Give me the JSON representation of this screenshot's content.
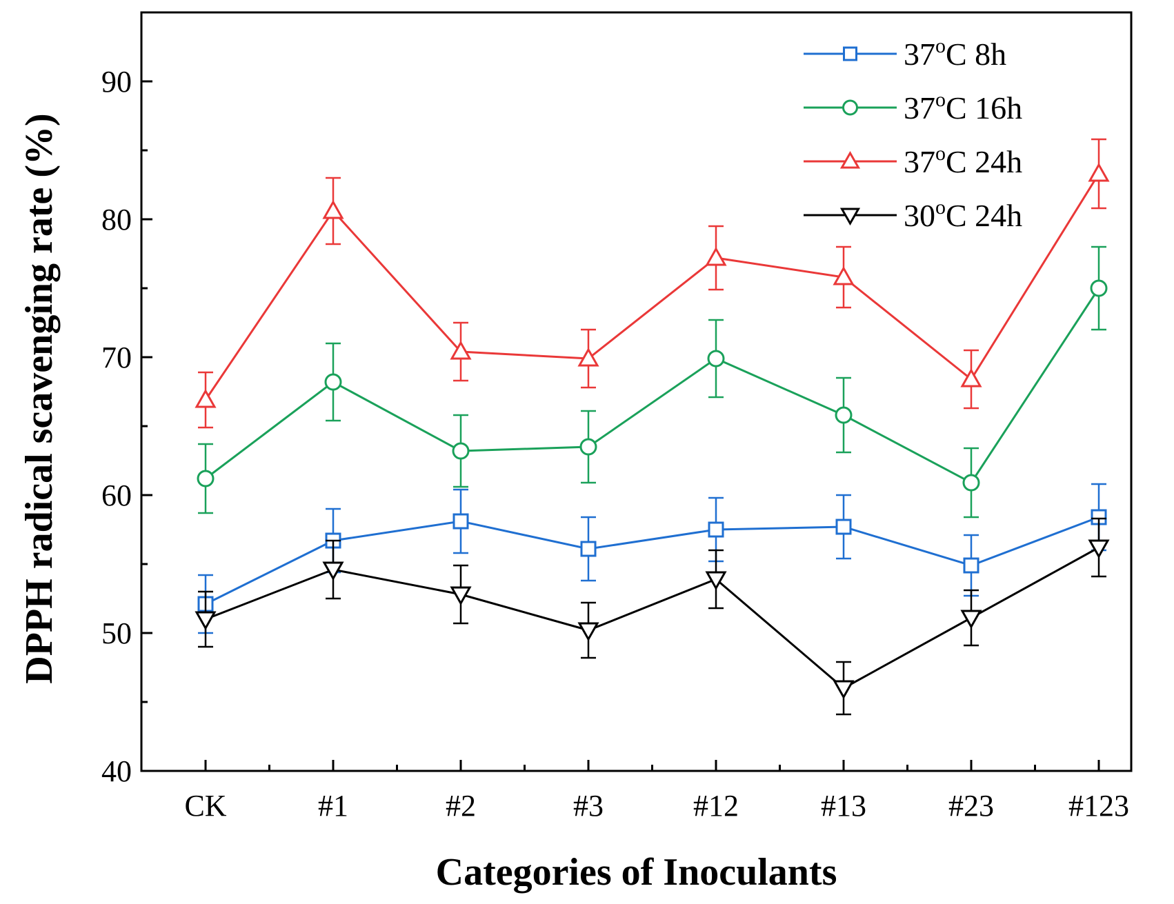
{
  "chart_data": {
    "type": "line",
    "title": "",
    "xlabel": "Categories of Inoculants",
    "ylabel": "DPPH radical scavenging rate (%)",
    "categories": [
      "CK",
      "#1",
      "#2",
      "#3",
      "#12",
      "#13",
      "#23",
      "#123"
    ],
    "ylim": [
      40,
      95
    ],
    "yticks": [
      40,
      50,
      60,
      70,
      80,
      90
    ],
    "grid": false,
    "legend_position": "top-right",
    "series": [
      {
        "name": "37°C 8h",
        "legend_main": "37",
        "legend_sup": "o",
        "legend_rest": "C 8h",
        "color": "#1f6fd1",
        "marker": "square",
        "values": [
          52.1,
          56.7,
          58.1,
          56.1,
          57.5,
          57.7,
          54.9,
          58.4
        ],
        "errors": [
          2.1,
          2.3,
          2.3,
          2.3,
          2.3,
          2.3,
          2.2,
          2.4
        ]
      },
      {
        "name": "37°C 16h",
        "legend_main": "37",
        "legend_sup": "o",
        "legend_rest": "C 16h",
        "color": "#1aa15a",
        "marker": "circle",
        "values": [
          61.2,
          68.2,
          63.2,
          63.5,
          69.9,
          65.8,
          60.9,
          75.0
        ],
        "errors": [
          2.5,
          2.8,
          2.6,
          2.6,
          2.8,
          2.7,
          2.5,
          3.0
        ]
      },
      {
        "name": "37°C 24h",
        "legend_main": "37",
        "legend_sup": "o",
        "legend_rest": "C 24h",
        "color": "#ea3838",
        "marker": "triangle-up",
        "values": [
          66.9,
          80.6,
          70.4,
          69.9,
          77.2,
          75.8,
          68.4,
          83.3
        ],
        "errors": [
          2.0,
          2.4,
          2.1,
          2.1,
          2.3,
          2.2,
          2.1,
          2.5
        ]
      },
      {
        "name": "30°C 24h",
        "legend_main": "30",
        "legend_sup": "o",
        "legend_rest": "C 24h",
        "color": "#000000",
        "marker": "triangle-down",
        "values": [
          51.0,
          54.6,
          52.8,
          50.2,
          53.9,
          46.0,
          51.1,
          56.2
        ],
        "errors": [
          2.0,
          2.1,
          2.1,
          2.0,
          2.1,
          1.9,
          2.0,
          2.1
        ]
      }
    ]
  }
}
